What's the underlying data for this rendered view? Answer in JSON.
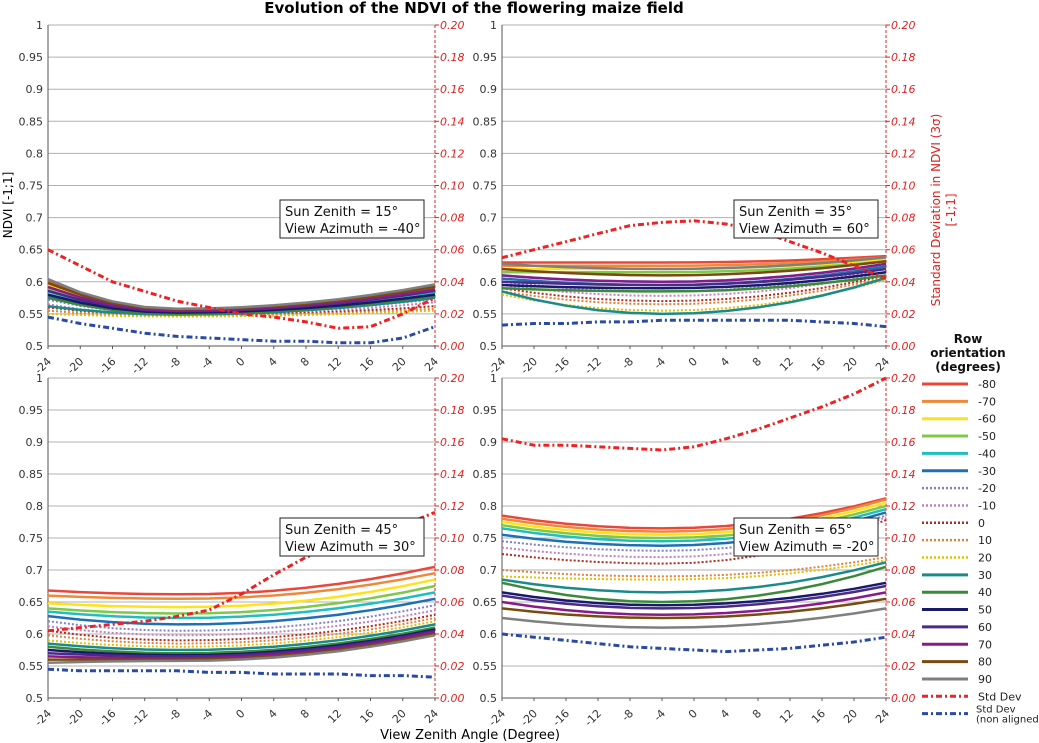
{
  "title": "Evolution of the NDVI of the flowering maize field",
  "xlabel": "View Zenith Angle (Degree)",
  "ylabel_left": "NDVI [-1;1]",
  "ylabel_right": "Standard Deviation in NDVI (3σ) [-1;1]",
  "legend": {
    "title": "Row orientation (degrees)",
    "entries": [
      {
        "label": "-80",
        "color": "#e8483a",
        "style": "solid"
      },
      {
        "label": "-70",
        "color": "#f0883a",
        "style": "solid"
      },
      {
        "label": "-60",
        "color": "#ffe21a",
        "style": "solid"
      },
      {
        "label": "-50",
        "color": "#7fc84a",
        "style": "solid"
      },
      {
        "label": "-40",
        "color": "#1fbfbf",
        "style": "solid"
      },
      {
        "label": "-30",
        "color": "#1f6fb5",
        "style": "solid"
      },
      {
        "label": "-20",
        "color": "#7f7fd0",
        "style": "dotted"
      },
      {
        "label": "-10",
        "color": "#c080c0",
        "style": "dotted"
      },
      {
        "label": "0",
        "color": "#b02a1a",
        "style": "dotted"
      },
      {
        "label": "10",
        "color": "#e0803a",
        "style": "dotted"
      },
      {
        "label": "20",
        "color": "#e0c000",
        "style": "dotted"
      },
      {
        "label": "30",
        "color": "#1a8a8a",
        "style": "solid"
      },
      {
        "label": "40",
        "color": "#3a8a3a",
        "style": "solid"
      },
      {
        "label": "50",
        "color": "#1a1a6a",
        "style": "solid"
      },
      {
        "label": "60",
        "color": "#4a2a8a",
        "style": "solid"
      },
      {
        "label": "70",
        "color": "#8a1a8a",
        "style": "solid"
      },
      {
        "label": "80",
        "color": "#7a4a10",
        "style": "solid"
      },
      {
        "label": "90",
        "color": "#7f7f7f",
        "style": "solid"
      },
      {
        "label": "Std Dev",
        "color": "#ee2222",
        "style": "dashdot"
      },
      {
        "label": "Std Dev (non aligned)",
        "color": "#2a4aa8",
        "style": "dashdot"
      }
    ]
  },
  "chart_data": {
    "type": "line",
    "x": [
      -24,
      -20,
      -16,
      -12,
      -8,
      -4,
      0,
      4,
      8,
      12,
      16,
      20,
      24
    ],
    "x_ticks": [
      "-24",
      "-20",
      "-16",
      "-12",
      "-8",
      "-4",
      "0",
      "4",
      "8",
      "12",
      "16",
      "20",
      "24"
    ],
    "ylim": [
      0.5,
      1
    ],
    "y_ticks": [
      "0.5",
      "0.55",
      "0.6",
      "0.65",
      "0.7",
      "0.75",
      "0.8",
      "0.85",
      "0.9",
      "0.95",
      "1"
    ],
    "ylim_right": [
      0,
      0.2
    ],
    "y2_ticks": [
      "0.00",
      "0.02",
      "0.04",
      "0.06",
      "0.08",
      "0.10",
      "0.12",
      "0.14",
      "0.16",
      "0.18",
      "0.20"
    ],
    "panels": [
      {
        "annotation": [
          "Sun Zenith = 15°",
          "View Azimuth = -40°"
        ],
        "ndvi_start": [
          0.602,
          0.598,
          0.595,
          0.59,
          0.585,
          0.578,
          0.572,
          0.565,
          0.56,
          0.555,
          0.55,
          0.562,
          0.575,
          0.58,
          0.586,
          0.592,
          0.598,
          0.604
        ],
        "ndvi_min": [
          0.552,
          0.552,
          0.552,
          0.552,
          0.552,
          0.551,
          0.55,
          0.548,
          0.548,
          0.547,
          0.546,
          0.549,
          0.55,
          0.552,
          0.554,
          0.555,
          0.557,
          0.558
        ],
        "ndvi_end": [
          0.595,
          0.593,
          0.59,
          0.587,
          0.583,
          0.578,
          0.573,
          0.568,
          0.562,
          0.558,
          0.555,
          0.575,
          0.578,
          0.58,
          0.586,
          0.588,
          0.592,
          0.596
        ],
        "min_pos": 0.33,
        "std_dev": [
          0.06,
          0.05,
          0.04,
          0.034,
          0.028,
          0.024,
          0.02,
          0.018,
          0.015,
          0.011,
          0.012,
          0.02,
          0.03
        ],
        "std_dev_non_aligned": [
          0.018,
          0.014,
          0.011,
          0.008,
          0.006,
          0.005,
          0.004,
          0.003,
          0.003,
          0.002,
          0.002,
          0.005,
          0.012
        ]
      },
      {
        "annotation": [
          "Sun Zenith = 35°",
          "View Azimuth = 60°"
        ],
        "ndvi_start": [
          0.63,
          0.625,
          0.62,
          0.615,
          0.61,
          0.605,
          0.6,
          0.595,
          0.59,
          0.585,
          0.58,
          0.585,
          0.59,
          0.595,
          0.6,
          0.61,
          0.62,
          0.628
        ],
        "ndvi_min": [
          0.63,
          0.625,
          0.62,
          0.615,
          0.6,
          0.595,
          0.585,
          0.578,
          0.57,
          0.565,
          0.555,
          0.55,
          0.585,
          0.59,
          0.595,
          0.6,
          0.61,
          0.62
        ],
        "ndvi_end": [
          0.64,
          0.638,
          0.635,
          0.632,
          0.628,
          0.624,
          0.62,
          0.615,
          0.61,
          0.607,
          0.603,
          0.606,
          0.61,
          0.615,
          0.62,
          0.628,
          0.632,
          0.638
        ],
        "min_pos": 0.42,
        "std_dev": [
          0.055,
          0.06,
          0.065,
          0.07,
          0.075,
          0.077,
          0.078,
          0.076,
          0.072,
          0.065,
          0.058,
          0.05,
          0.042
        ],
        "std_dev_non_aligned": [
          0.013,
          0.014,
          0.014,
          0.015,
          0.015,
          0.016,
          0.016,
          0.016,
          0.016,
          0.016,
          0.015,
          0.014,
          0.012
        ]
      },
      {
        "annotation": [
          "Sun Zenith = 45°",
          "View Azimuth = 30°"
        ],
        "ndvi_start": [
          0.668,
          0.66,
          0.648,
          0.64,
          0.635,
          0.628,
          0.62,
          0.612,
          0.605,
          0.598,
          0.59,
          0.585,
          0.58,
          0.575,
          0.57,
          0.565,
          0.56,
          0.555
        ],
        "ndvi_min": [
          0.662,
          0.655,
          0.642,
          0.632,
          0.625,
          0.615,
          0.605,
          0.598,
          0.59,
          0.585,
          0.58,
          0.575,
          0.57,
          0.567,
          0.565,
          0.562,
          0.56,
          0.558
        ],
        "ndvi_end": [
          0.705,
          0.695,
          0.685,
          0.675,
          0.665,
          0.655,
          0.645,
          0.637,
          0.63,
          0.625,
          0.62,
          0.615,
          0.61,
          0.607,
          0.605,
          0.603,
          0.6,
          0.598
        ],
        "min_pos": 0.35,
        "std_dev": [
          0.042,
          0.044,
          0.046,
          0.048,
          0.051,
          0.055,
          0.065,
          0.077,
          0.088,
          0.095,
          0.1,
          0.108,
          0.116
        ],
        "std_dev_non_aligned": [
          0.018,
          0.017,
          0.017,
          0.017,
          0.017,
          0.016,
          0.016,
          0.015,
          0.015,
          0.015,
          0.014,
          0.014,
          0.013
        ]
      },
      {
        "annotation": [
          "Sun Zenith = 65°",
          "View Azimuth = -20°"
        ],
        "ndvi_start": [
          0.785,
          0.78,
          0.775,
          0.77,
          0.765,
          0.755,
          0.745,
          0.735,
          0.725,
          0.7,
          0.69,
          0.685,
          0.68,
          0.665,
          0.66,
          0.65,
          0.64,
          0.625
        ],
        "ndvi_min": [
          0.765,
          0.76,
          0.755,
          0.75,
          0.745,
          0.738,
          0.73,
          0.72,
          0.71,
          0.69,
          0.685,
          0.665,
          0.65,
          0.645,
          0.64,
          0.63,
          0.625,
          0.61
        ],
        "ndvi_end": [
          0.812,
          0.81,
          0.805,
          0.8,
          0.795,
          0.79,
          0.785,
          0.782,
          0.778,
          0.72,
          0.715,
          0.712,
          0.705,
          0.68,
          0.675,
          0.665,
          0.655,
          0.64
        ],
        "min_pos": 0.42,
        "std_dev": [
          0.162,
          0.158,
          0.158,
          0.157,
          0.156,
          0.155,
          0.157,
          0.162,
          0.168,
          0.175,
          0.182,
          0.19,
          0.2
        ],
        "std_dev_non_aligned": [
          0.04,
          0.038,
          0.036,
          0.034,
          0.032,
          0.031,
          0.03,
          0.029,
          0.03,
          0.031,
          0.033,
          0.035,
          0.038
        ]
      }
    ]
  }
}
